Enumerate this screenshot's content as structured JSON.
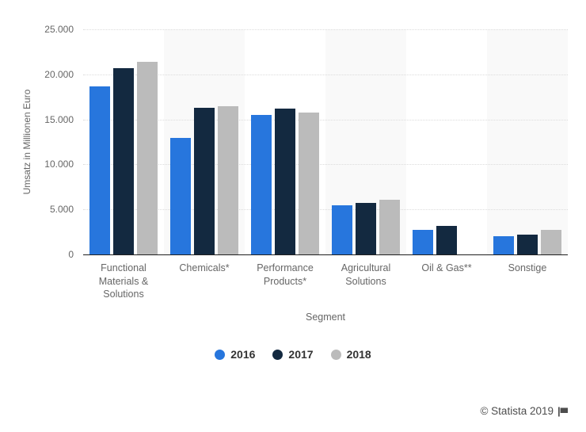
{
  "chart_data": {
    "type": "bar",
    "title": "",
    "xlabel": "Segment",
    "ylabel": "Umsatz in Millionen Euro",
    "ylim": [
      0,
      25000
    ],
    "ytick_step": 5000,
    "ytick_labels": [
      "0",
      "5.000",
      "10.000",
      "15.000",
      "20.000",
      "25.000"
    ],
    "grid": "horizontal-dotted",
    "legend_position": "bottom",
    "categories": [
      "Functional Materials & Solutions",
      "Chemicals*",
      "Performance Products*",
      "Agricultural Solutions",
      "Oil & Gas**",
      "Sonstige"
    ],
    "category_labels": [
      "Functional\nMaterials &\nSolutions",
      "Chemicals*",
      "Performance\nProducts*",
      "Agricultural\nSolutions",
      "Oil & Gas**",
      "Sonstige"
    ],
    "series": [
      {
        "name": "2016",
        "color": "#2776dd",
        "values": [
          18700,
          12900,
          15500,
          5500,
          2700,
          2000
        ]
      },
      {
        "name": "2017",
        "color": "#132940",
        "values": [
          20700,
          16300,
          16200,
          5700,
          3200,
          2200
        ]
      },
      {
        "name": "2018",
        "color": "#bbbbbb",
        "values": [
          21400,
          16500,
          15800,
          6100,
          null,
          2700
        ]
      }
    ],
    "band_stripe_color": "#f9f9f9",
    "striped_band_indices": [
      1,
      3,
      5
    ]
  },
  "footer": {
    "copyright": "© Statista 2019"
  },
  "icons": {
    "flag": "flag-icon"
  },
  "colors": {
    "axis_line": "#1f1f1f",
    "gridline": "#dcdcdc",
    "tick_text": "#666666",
    "legend_text": "#333333",
    "footer_text": "#4d4d4d",
    "background": "#ffffff"
  }
}
